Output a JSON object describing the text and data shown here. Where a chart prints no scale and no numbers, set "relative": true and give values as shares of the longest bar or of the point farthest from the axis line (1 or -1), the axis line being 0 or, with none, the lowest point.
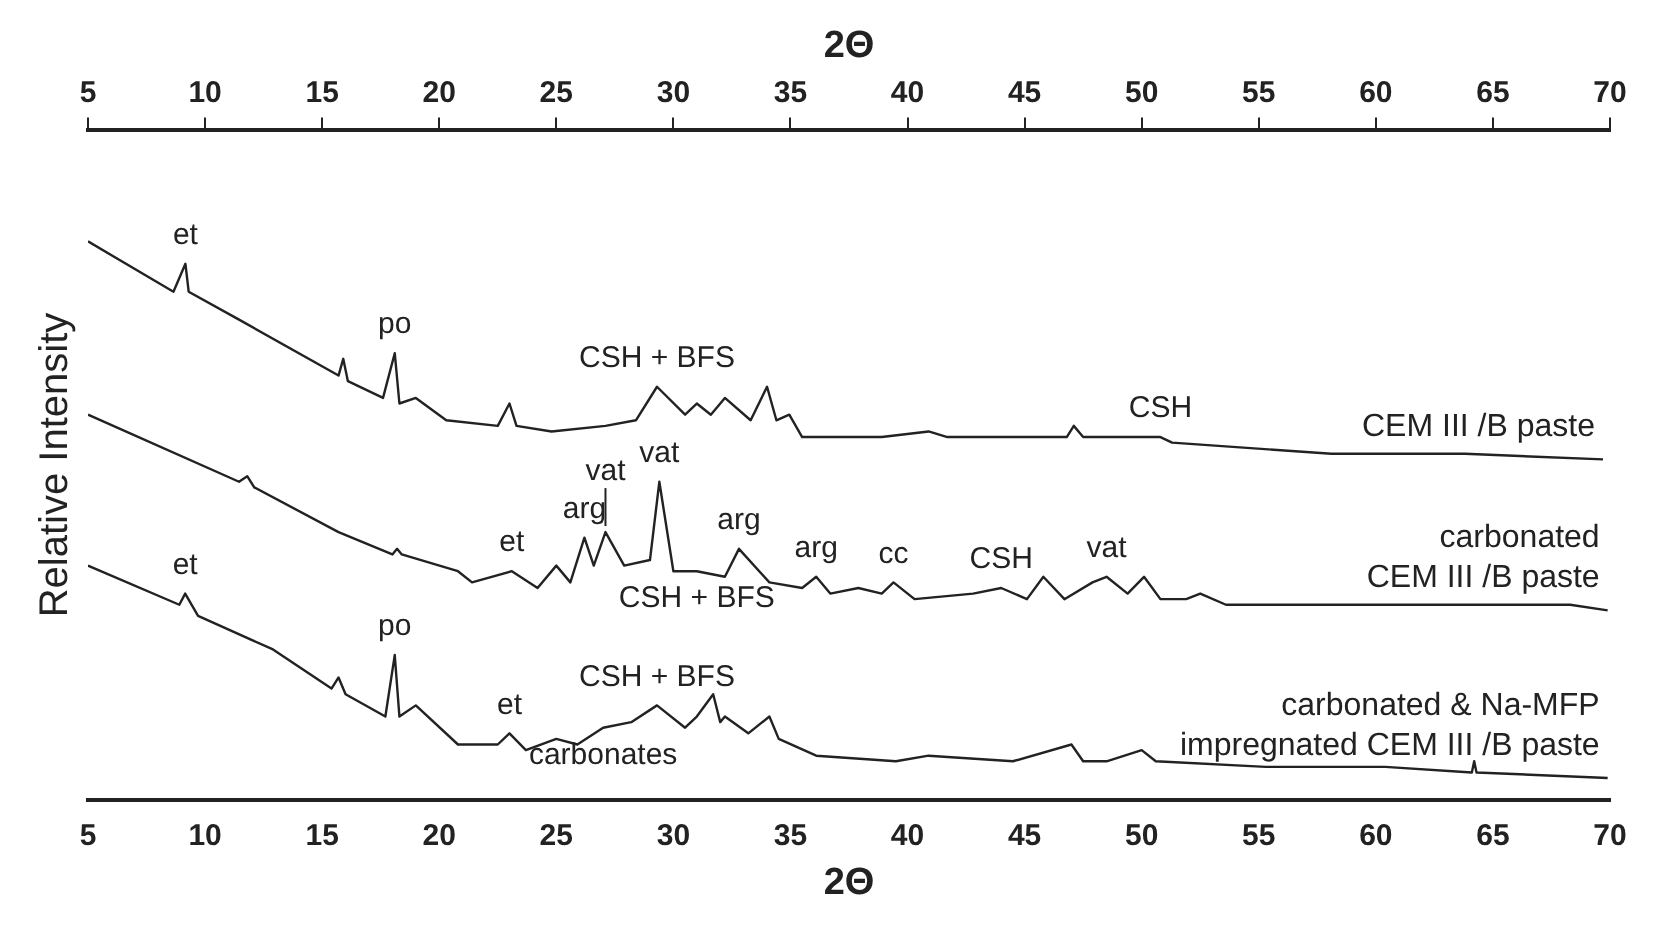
{
  "chart_data": {
    "type": "line",
    "relative": true,
    "xlabel": "2Θ",
    "x2label": "2Θ",
    "ylabel": "Relative Intensity",
    "xlim": [
      5,
      70
    ],
    "xticks": [
      5,
      10,
      15,
      20,
      25,
      30,
      35,
      40,
      45,
      50,
      55,
      60,
      65,
      70
    ],
    "x2lim": [
      5,
      70
    ],
    "x2ticks": [
      5,
      10,
      15,
      20,
      25,
      30,
      35,
      40,
      45,
      50,
      55,
      60,
      65,
      70
    ],
    "grid": false,
    "legend": false,
    "marker": "none",
    "line_style": "solid",
    "series": [
      {
        "name": "CEM III /B paste",
        "color": "#222222",
        "x": [
          5,
          8.65,
          9.16,
          9.3,
          11.45,
          15.7,
          15.9,
          16.1,
          17.6,
          18.1,
          18.3,
          19.0,
          20.3,
          22.5,
          23.0,
          23.3,
          24.8,
          27.1,
          28.4,
          29.3,
          30.5,
          31.0,
          31.6,
          32.2,
          33.3,
          34.0,
          34.4,
          34.95,
          35.5,
          38.9,
          40.9,
          41.7,
          46.8,
          47.1,
          47.5,
          49.6,
          50.8,
          51.3,
          58.1,
          63.8,
          69.7
        ],
        "values": [
          1.0,
          0.91,
          0.96,
          0.91,
          0.86,
          0.76,
          0.79,
          0.75,
          0.72,
          0.8,
          0.71,
          0.72,
          0.68,
          0.67,
          0.71,
          0.67,
          0.66,
          0.67,
          0.68,
          0.74,
          0.69,
          0.71,
          0.69,
          0.72,
          0.68,
          0.74,
          0.68,
          0.69,
          0.65,
          0.65,
          0.66,
          0.65,
          0.65,
          0.67,
          0.65,
          0.65,
          0.65,
          0.64,
          0.62,
          0.62,
          0.61
        ]
      },
      {
        "name": "carbonated\nCEM III /B paste",
        "color": "#222222",
        "x": [
          5,
          11.45,
          11.8,
          12.1,
          15.7,
          18,
          18.2,
          18.4,
          20.8,
          21.4,
          23.1,
          24.2,
          25.0,
          25.6,
          26.2,
          26.6,
          27.1,
          27.9,
          29.0,
          29.4,
          30.0,
          31.0,
          32.2,
          32.8,
          34.1,
          35.5,
          36.1,
          36.7,
          37.9,
          38.9,
          39.4,
          40.3,
          42.8,
          44.0,
          45.1,
          45.8,
          46.7,
          47.9,
          48.5,
          49.4,
          50.1,
          50.8,
          51.9,
          52.5,
          53.6,
          58.1,
          61,
          68.3,
          69.9
        ],
        "values": [
          0.69,
          0.57,
          0.58,
          0.56,
          0.48,
          0.44,
          0.45,
          0.44,
          0.41,
          0.39,
          0.41,
          0.38,
          0.42,
          0.39,
          0.47,
          0.42,
          0.48,
          0.42,
          0.43,
          0.57,
          0.41,
          0.41,
          0.4,
          0.45,
          0.39,
          0.38,
          0.4,
          0.37,
          0.38,
          0.37,
          0.39,
          0.36,
          0.37,
          0.38,
          0.36,
          0.4,
          0.36,
          0.39,
          0.4,
          0.37,
          0.4,
          0.36,
          0.36,
          0.37,
          0.35,
          0.35,
          0.35,
          0.35,
          0.34
        ]
      },
      {
        "name": "carbonated & Na-MFP\nimpregnated CEM III /B paste",
        "color": "#222222",
        "x": [
          5,
          8.9,
          9.15,
          9.7,
          12.9,
          15.4,
          15.7,
          16.0,
          17.7,
          18.1,
          18.3,
          19.0,
          20.8,
          22.5,
          23.0,
          23.7,
          25.0,
          25.9,
          27.0,
          28.2,
          29.3,
          30.5,
          31.0,
          31.7,
          32.0,
          32.2,
          33.2,
          34.1,
          34.5,
          36.1,
          39.5,
          40.9,
          44.5,
          47.0,
          47.5,
          48.5,
          50.0,
          50.6,
          55.3,
          60.4,
          64.1,
          64.2,
          64.3,
          69.9
        ],
        "values": [
          0.42,
          0.35,
          0.37,
          0.33,
          0.27,
          0.2,
          0.22,
          0.19,
          0.15,
          0.26,
          0.15,
          0.17,
          0.1,
          0.1,
          0.12,
          0.09,
          0.11,
          0.1,
          0.13,
          0.14,
          0.17,
          0.13,
          0.15,
          0.19,
          0.14,
          0.15,
          0.12,
          0.15,
          0.11,
          0.08,
          0.07,
          0.08,
          0.07,
          0.1,
          0.07,
          0.07,
          0.09,
          0.07,
          0.06,
          0.06,
          0.05,
          0.07,
          0.05,
          0.04
        ]
      }
    ],
    "annotations": [
      {
        "text": "et",
        "x": 9.16,
        "y": 0.96
      },
      {
        "text": "po",
        "x": 18.1,
        "y": 0.8
      },
      {
        "text": "CSH + BFS",
        "x": 29.3,
        "y": 0.74
      },
      {
        "text": "CSH",
        "x": 50.8,
        "y": 0.65
      },
      {
        "text": "arg",
        "x": 26.2,
        "y": 0.47
      },
      {
        "text": "vat",
        "x": 27.1,
        "y": 0.48
      },
      {
        "text": "vat",
        "x": 29.4,
        "y": 0.57
      },
      {
        "text": "arg",
        "x": 32.8,
        "y": 0.45
      },
      {
        "text": "arg",
        "x": 36.1,
        "y": 0.4
      },
      {
        "text": "cc",
        "x": 39.4,
        "y": 0.39
      },
      {
        "text": "CSH",
        "x": 44.0,
        "y": 0.38
      },
      {
        "text": "vat",
        "x": 48.5,
        "y": 0.4
      },
      {
        "text": "CSH + BFS",
        "x": 31.0,
        "y": 0.41
      },
      {
        "text": "et",
        "x": 23.1,
        "y": 0.41
      },
      {
        "text": "et",
        "x": 9.15,
        "y": 0.37
      },
      {
        "text": "po",
        "x": 18.1,
        "y": 0.26
      },
      {
        "text": "et",
        "x": 23.0,
        "y": 0.12
      },
      {
        "text": "carbonates",
        "x": 27.0,
        "y": 0.13
      },
      {
        "text": "CSH + BFS",
        "x": 29.3,
        "y": 0.17
      }
    ]
  }
}
